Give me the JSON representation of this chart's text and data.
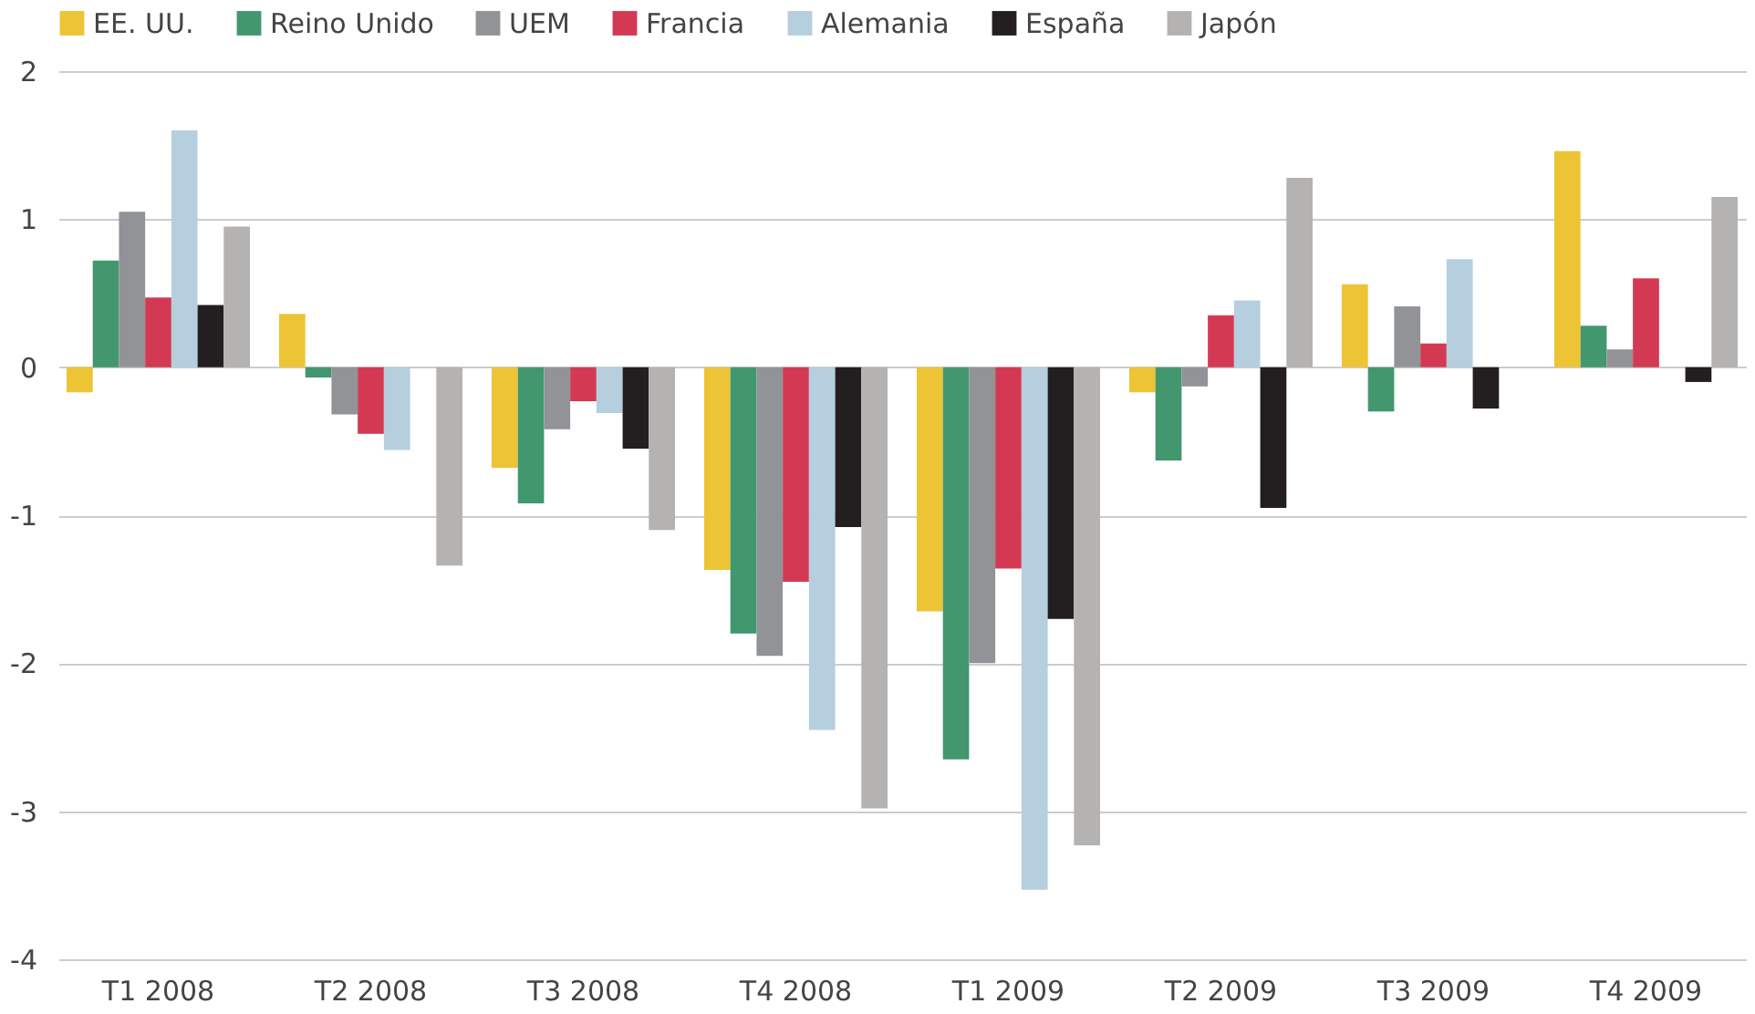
{
  "chart_data": {
    "type": "bar",
    "categories": [
      "T1 2008",
      "T2 2008",
      "T3 2008",
      "T4 2008",
      "T1 2009",
      "T2 2009",
      "T3 2009",
      "T4 2009"
    ],
    "series": [
      {
        "name": "EE. UU.",
        "color": "#ecc435",
        "values": [
          -0.17,
          0.36,
          -0.68,
          -1.37,
          -1.65,
          -0.17,
          0.56,
          1.46
        ]
      },
      {
        "name": "Reino Unido",
        "color": "#42976f",
        "values": [
          0.72,
          -0.07,
          -0.92,
          -1.8,
          -2.65,
          -0.63,
          -0.3,
          0.28
        ]
      },
      {
        "name": "UEM",
        "color": "#929396",
        "values": [
          1.05,
          -0.32,
          -0.42,
          -1.95,
          -2.0,
          -0.13,
          0.41,
          0.12
        ]
      },
      {
        "name": "Francia",
        "color": "#d43953",
        "values": [
          0.47,
          -0.45,
          -0.23,
          -1.45,
          -1.36,
          0.35,
          0.16,
          0.6
        ]
      },
      {
        "name": "Alemania",
        "color": "#b5cfdf",
        "values": [
          1.6,
          -0.56,
          -0.31,
          -2.45,
          -3.53,
          0.45,
          0.73,
          null
        ]
      },
      {
        "name": "España",
        "color": "#231f20",
        "values": [
          0.42,
          null,
          -0.55,
          -1.08,
          -1.7,
          -0.95,
          -0.28,
          -0.1
        ]
      },
      {
        "name": "Japón",
        "color": "#b4b3b1",
        "values": [
          0.95,
          -1.34,
          -1.1,
          -2.98,
          -3.23,
          1.28,
          null,
          1.15
        ]
      }
    ],
    "ylim": [
      -4,
      2
    ],
    "yticks": [
      -4,
      -3,
      -2,
      -1,
      0,
      1,
      2
    ],
    "grid": "y",
    "legend": "top"
  }
}
